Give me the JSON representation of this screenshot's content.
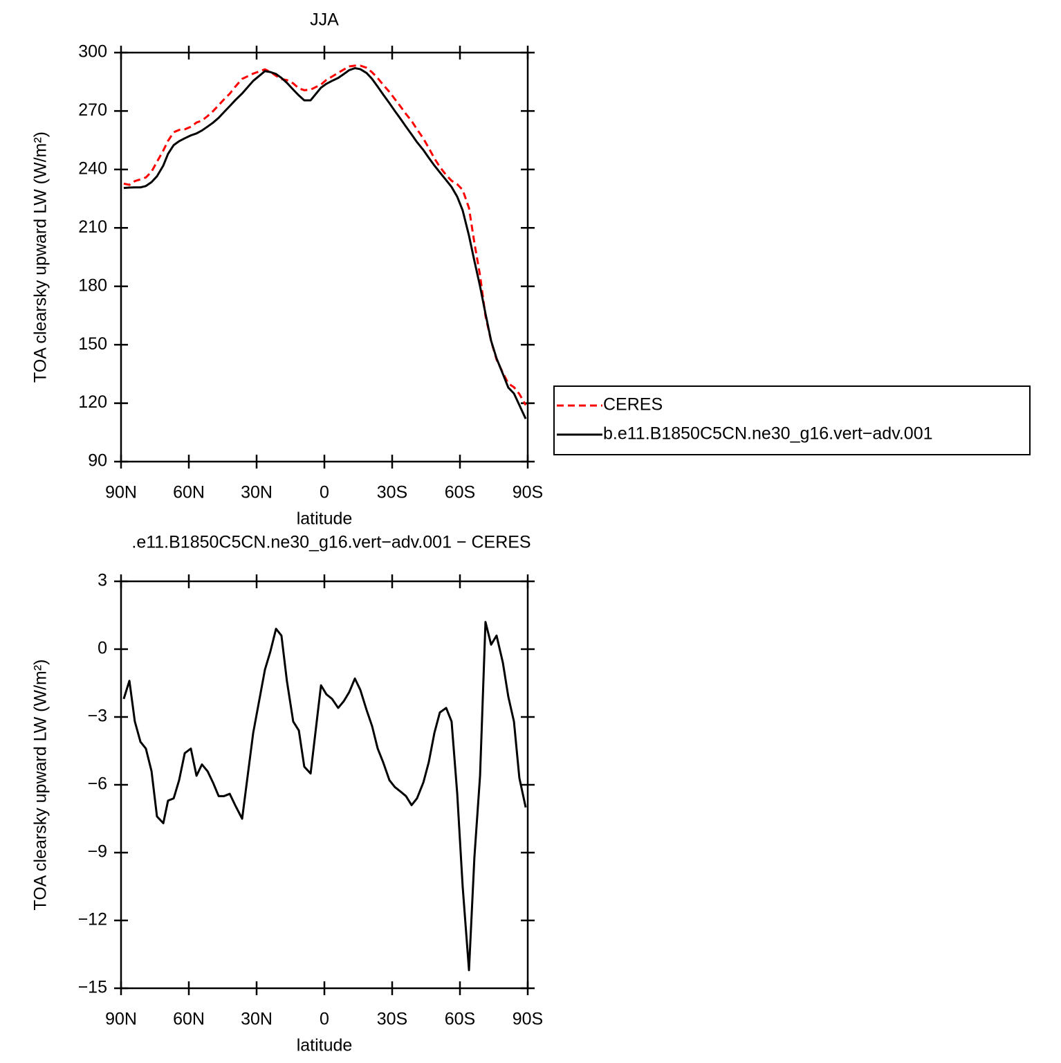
{
  "chart_data": [
    {
      "type": "line",
      "title": "JJA",
      "xlabel": "latitude",
      "ylabel": "TOA clearsky upward LW (W/m²)",
      "x": [
        88.8,
        86.3,
        83.9,
        81.4,
        79.0,
        76.5,
        74.1,
        71.3,
        69.2,
        66.7,
        64.3,
        61.8,
        59.1,
        56.6,
        54.2,
        51.7,
        49.3,
        46.8,
        44.4,
        41.9,
        39.5,
        36.4,
        31.5,
        26.3,
        23.9,
        21.4,
        19.0,
        16.6,
        13.8,
        11.3,
        8.9,
        6.1,
        1.5,
        -0.9,
        -3.4,
        -6.1,
        -8.6,
        -11.0,
        -13.5,
        -15.9,
        -18.7,
        -21.1,
        -23.6,
        -26.0,
        -28.8,
        -31.2,
        -33.7,
        -36.1,
        -38.6,
        -41.0,
        -43.8,
        -46.2,
        -48.7,
        -51.1,
        -53.9,
        -56.3,
        -58.8,
        -61.2,
        -64.0,
        -66.4,
        -68.9,
        -71.3,
        -73.8,
        -76.2,
        -79.0,
        -81.4,
        -83.9,
        -86.3,
        -89.1
      ],
      "series": [
        {
          "name": "CERES",
          "color": "#ff0000",
          "linestyle": "dashed",
          "values": [
            232.7,
            232.1,
            234.0,
            234.9,
            235.9,
            238.9,
            243.9,
            249.7,
            254.7,
            259.1,
            260.3,
            260.6,
            261.9,
            264.1,
            265.1,
            267.4,
            269.9,
            273.0,
            276.0,
            278.9,
            282.4,
            286.5,
            289.2,
            291.4,
            290.1,
            288.1,
            286.4,
            285.9,
            284.2,
            281.6,
            280.7,
            281.0,
            283.6,
            286.0,
            287.7,
            289.6,
            291.3,
            292.9,
            293.3,
            293.3,
            292.2,
            289.9,
            286.9,
            283.5,
            279.8,
            276.1,
            272.3,
            268.5,
            264.9,
            260.6,
            255.9,
            251.0,
            245.7,
            241.3,
            237.1,
            234.2,
            232.4,
            229.5,
            220.2,
            202.2,
            185.6,
            164.8,
            151.8,
            142.4,
            135.6,
            130.1,
            128.2,
            124.7,
            119.0
          ]
        },
        {
          "name": "b.e11.B1850C5CN.ne30_g16.vert−adv.001",
          "color": "#000000",
          "linestyle": "solid",
          "values": [
            230.5,
            230.7,
            230.8,
            230.8,
            231.5,
            233.5,
            236.5,
            242,
            248,
            252.5,
            254.5,
            256,
            257.5,
            258.5,
            260,
            262,
            264,
            266.5,
            269.5,
            272.5,
            275.5,
            279,
            285.5,
            290.5,
            290,
            289,
            287,
            284.5,
            281,
            278,
            275.5,
            275.5,
            282,
            284,
            285.5,
            287,
            289,
            291,
            292,
            291.5,
            289.5,
            286.5,
            282.5,
            278.5,
            274,
            270,
            266,
            262,
            258,
            254,
            250,
            246,
            242,
            238.5,
            234.5,
            231,
            226,
            219,
            206,
            193,
            180,
            166,
            152,
            143,
            135,
            128,
            125,
            119,
            112
          ]
        }
      ],
      "xlim": [
        90,
        -90
      ],
      "xticks": [
        {
          "value": 90,
          "label": "90N"
        },
        {
          "value": 60,
          "label": "60N"
        },
        {
          "value": 30,
          "label": "30N"
        },
        0,
        {
          "value": -30,
          "label": "30S"
        },
        {
          "value": -60,
          "label": "60S"
        },
        {
          "value": -90,
          "label": "90S"
        }
      ],
      "ylim": [
        90,
        300
      ],
      "yticks": [
        90,
        120,
        150,
        180,
        210,
        240,
        270,
        300
      ],
      "legend": "right"
    },
    {
      "type": "line",
      "title": ".e11.B1850C5CN.ne30_g16.vert−adv.001 − CERES",
      "xlabel": "latitude",
      "ylabel": "TOA clearsky upward LW (W/m²)",
      "x": [
        88.8,
        86.3,
        83.9,
        81.4,
        79.0,
        76.5,
        74.1,
        71.3,
        69.2,
        66.7,
        64.3,
        61.8,
        59.1,
        56.6,
        54.2,
        51.7,
        49.3,
        46.8,
        44.4,
        41.9,
        39.5,
        36.4,
        31.5,
        26.3,
        23.9,
        21.4,
        19.0,
        16.6,
        13.8,
        11.3,
        8.9,
        6.1,
        1.5,
        -0.9,
        -3.4,
        -6.1,
        -8.6,
        -11.0,
        -13.5,
        -15.9,
        -18.7,
        -21.1,
        -23.6,
        -26.0,
        -28.8,
        -31.2,
        -33.7,
        -36.1,
        -38.6,
        -41.0,
        -43.8,
        -46.2,
        -48.7,
        -51.1,
        -53.9,
        -56.3,
        -58.8,
        -61.2,
        -64.0,
        -66.4,
        -68.9,
        -71.3,
        -73.8,
        -76.2,
        -79.0,
        -81.4,
        -83.9,
        -86.3,
        -89.1
      ],
      "values": [
        -2.2,
        -1.4,
        -3.2,
        -4.1,
        -4.4,
        -5.4,
        -7.4,
        -7.7,
        -6.7,
        -6.6,
        -5.8,
        -4.6,
        -4.4,
        -5.6,
        -5.1,
        -5.4,
        -5.9,
        -6.5,
        -6.5,
        -6.4,
        -6.9,
        -7.5,
        -3.7,
        -0.9,
        -0.1,
        0.9,
        0.6,
        -1.4,
        -3.2,
        -3.6,
        -5.2,
        -5.5,
        -1.6,
        -2.0,
        -2.2,
        -2.6,
        -2.3,
        -1.9,
        -1.3,
        -1.8,
        -2.7,
        -3.4,
        -4.4,
        -5.0,
        -5.8,
        -6.1,
        -6.3,
        -6.5,
        -6.9,
        -6.6,
        -5.9,
        -5.0,
        -3.7,
        -2.8,
        -2.6,
        -3.2,
        -6.4,
        -10.5,
        -14.2,
        -9.2,
        -5.6,
        1.2,
        0.2,
        0.6,
        -0.6,
        -2.1,
        -3.2,
        -5.7,
        -7.0
      ],
      "color": "#000000",
      "xlim": [
        90,
        -90
      ],
      "xticks": [
        {
          "value": 90,
          "label": "90N"
        },
        {
          "value": 60,
          "label": "60N"
        },
        {
          "value": 30,
          "label": "30N"
        },
        0,
        {
          "value": -30,
          "label": "30S"
        },
        {
          "value": -60,
          "label": "60S"
        },
        {
          "value": -90,
          "label": "90S"
        }
      ],
      "ylim": [
        -15,
        3
      ],
      "yticks": [
        {
          "value": -15,
          "label": "−15"
        },
        {
          "value": -12,
          "label": "−12"
        },
        {
          "value": -9,
          "label": "−9"
        },
        {
          "value": -6,
          "label": "−6"
        },
        {
          "value": -3,
          "label": "−3"
        },
        0,
        3
      ]
    }
  ]
}
